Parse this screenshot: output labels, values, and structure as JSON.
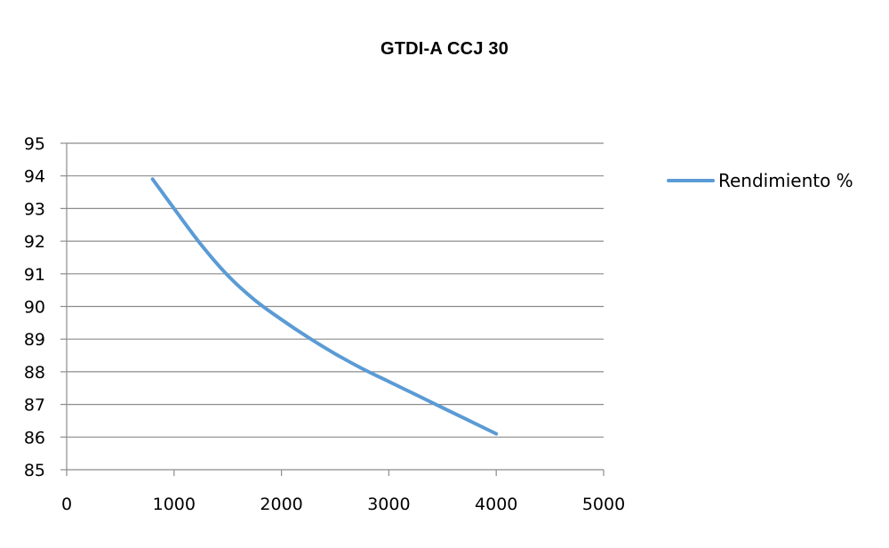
{
  "chart_data": {
    "type": "line",
    "title": "GTDI-A CCJ 30",
    "xlabel": "",
    "ylabel": "",
    "xlim": [
      0,
      5000
    ],
    "ylim": [
      85,
      95
    ],
    "x_ticks": [
      "0",
      "1000",
      "2000",
      "3000",
      "4000",
      "5000"
    ],
    "y_ticks": [
      "85",
      "86",
      "87",
      "88",
      "89",
      "90",
      "91",
      "92",
      "93",
      "94",
      "95"
    ],
    "grid": "horizontal",
    "legend_position": "right",
    "series": [
      {
        "name": "Rendimiento %",
        "color": "#5B9BD5",
        "x": [
          800,
          1000,
          1250,
          1500,
          1750,
          2000,
          2250,
          2500,
          2750,
          3000,
          3250,
          3500,
          3750,
          4000
        ],
        "y": [
          93.9,
          93.0,
          91.9,
          90.95,
          90.2,
          89.6,
          89.05,
          88.55,
          88.1,
          87.7,
          87.3,
          86.9,
          86.5,
          86.1
        ]
      }
    ]
  }
}
